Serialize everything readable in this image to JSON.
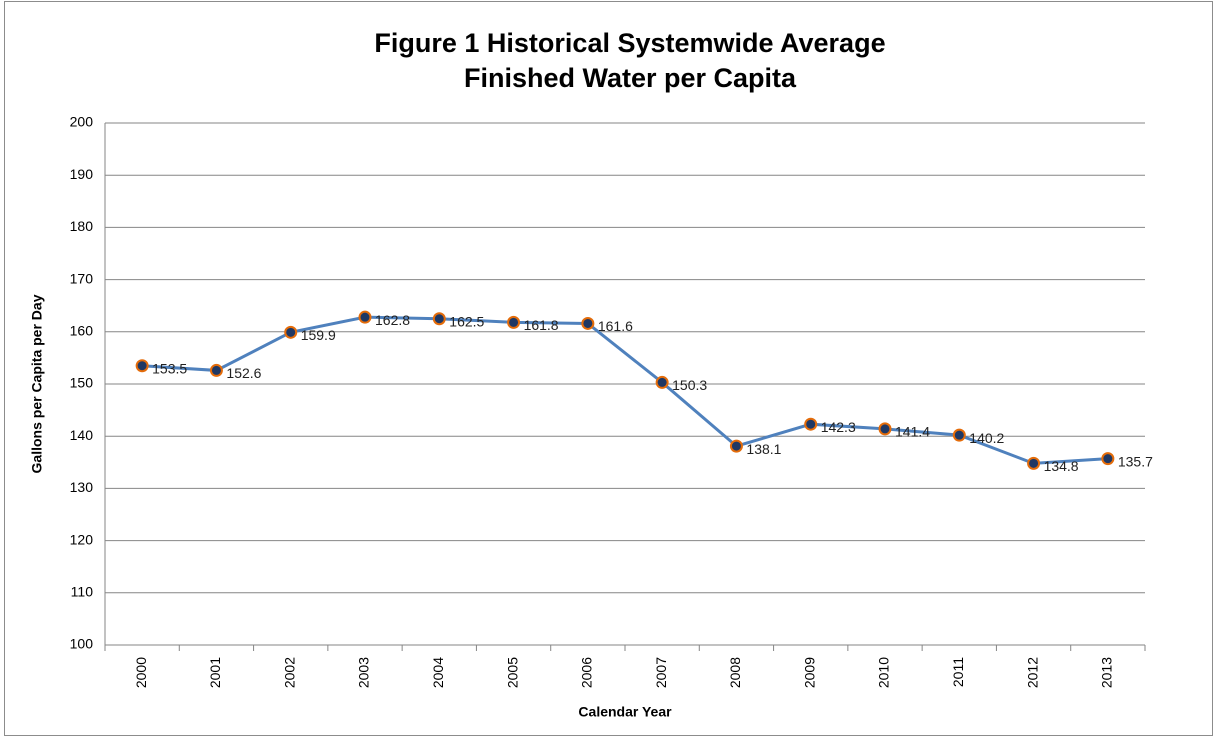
{
  "chart_data": {
    "type": "line",
    "title": [
      "Figure 1 Historical Systemwide Average",
      "Finished Water per Capita"
    ],
    "x_label": "Calendar Year",
    "y_label": "Gallons per Capita per Day",
    "categories": [
      "2000",
      "2001",
      "2002",
      "2003",
      "2004",
      "2005",
      "2006",
      "2007",
      "2008",
      "2009",
      "2010",
      "2011",
      "2012",
      "2013"
    ],
    "series": [
      {
        "name": "Gallons per Capita per Day",
        "color": "#4f81bd",
        "marker_fill": "#1f3864",
        "marker_edge": "#e46c0a",
        "values": [
          153.5,
          152.6,
          159.9,
          162.8,
          162.5,
          161.8,
          161.6,
          150.3,
          138.1,
          142.3,
          141.4,
          140.2,
          134.8,
          135.7
        ]
      }
    ],
    "ylim": [
      100,
      200
    ],
    "yticks": [
      100,
      110,
      120,
      130,
      140,
      150,
      160,
      170,
      180,
      190,
      200
    ],
    "grid": true
  }
}
